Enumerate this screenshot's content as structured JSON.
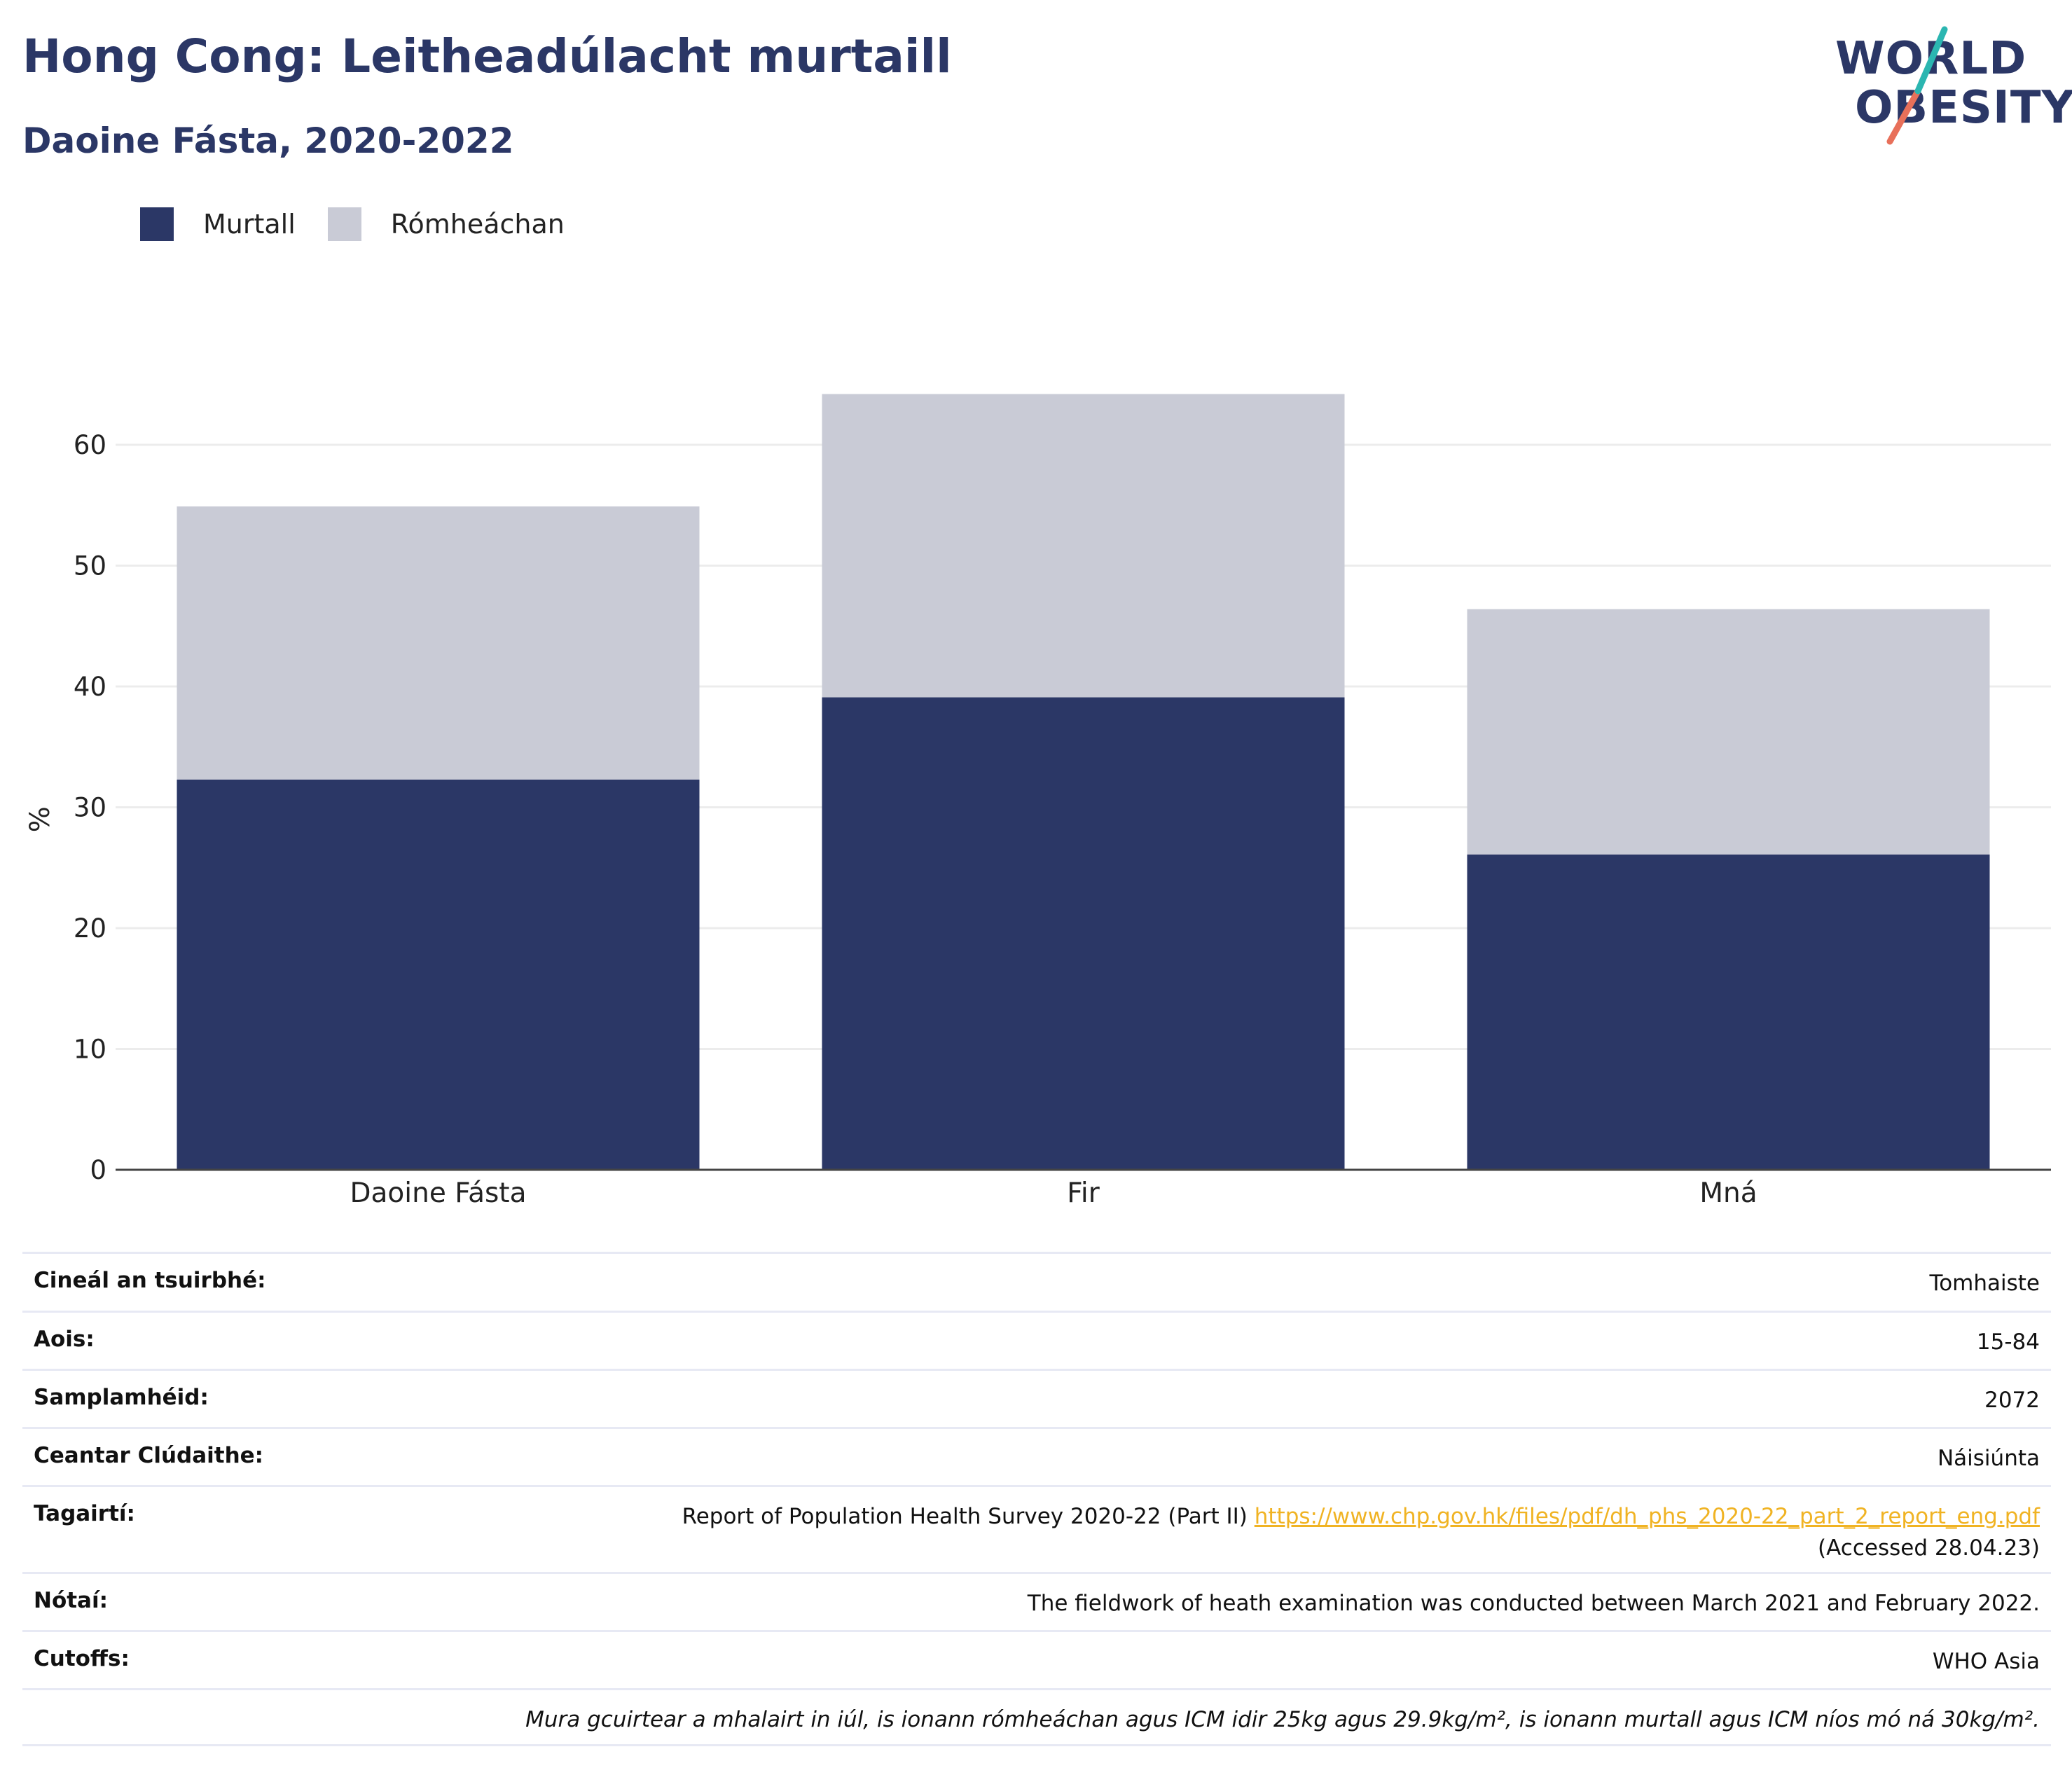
{
  "title": "Hong Cong: Leitheadúlacht murtaill",
  "subtitle": "Daoine Fásta, 2020-2022",
  "logo": {
    "line1": "WORLD",
    "line2": "OBESITY"
  },
  "colors": {
    "obesity": "#2b3766",
    "overweight": "#c9cbd6",
    "title": "#2b3766",
    "link": "#f0b323",
    "logo_teal": "#2bb6b1",
    "logo_coral": "#e8705a"
  },
  "legend": {
    "series1": "Murtall",
    "series2": "Rómheáchan"
  },
  "chart_data": {
    "type": "bar",
    "stacked": true,
    "categories": [
      "Daoine Fásta",
      "Fir",
      "Mná"
    ],
    "series": [
      {
        "name": "Murtall",
        "values": [
          32.3,
          39.1,
          26.1
        ]
      },
      {
        "name": "Rómheáchan",
        "values": [
          22.6,
          25.1,
          20.3
        ]
      }
    ],
    "ylabel": "%",
    "ylim": [
      0,
      70
    ],
    "yticks": [
      "0",
      "10",
      "20",
      "30",
      "40",
      "50",
      "60"
    ],
    "grid": true,
    "legend_position": "top-left"
  },
  "table": {
    "survey_type": {
      "label": "Cineál an tsuirbhé:",
      "value": "Tomhaiste"
    },
    "age": {
      "label": "Aois:",
      "value": "15-84"
    },
    "sample": {
      "label": "Samplamhéid:",
      "value": "2072"
    },
    "coverage": {
      "label": "Ceantar Clúdaithe:",
      "value": "Náisiúnta"
    },
    "references": {
      "label": "Tagairtí:",
      "text": "Report of Population Health Survey 2020-22 (Part II)",
      "link": "https://www.chp.gov.hk/files/pdf/dh_phs_2020-22_part_2_report_eng.pdf",
      "accessed": "(Accessed 28.04.23)"
    },
    "notes": {
      "label": "Nótaí:",
      "value": "The fieldwork of heath examination was conducted between March 2021 and February 2022."
    },
    "cutoffs": {
      "label": "Cutoffs:",
      "value": "WHO Asia"
    },
    "footnote": "Mura gcuirtear a mhalairt in iúl, is ionann rómheáchan agus ICM idir 25kg agus 29.9kg/m², is ionann murtall agus ICM níos mó ná 30kg/m²."
  }
}
